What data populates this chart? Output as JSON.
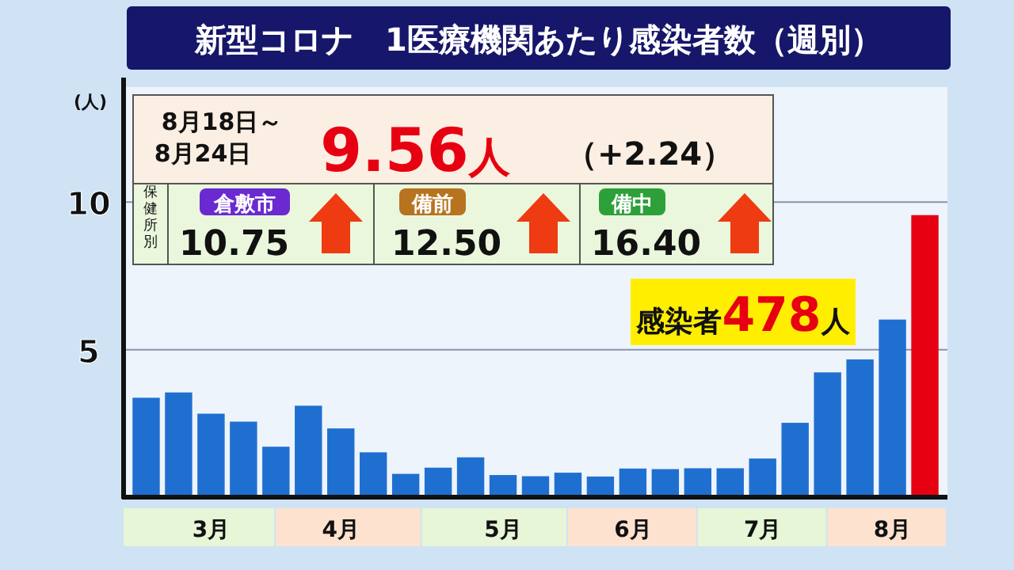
{
  "chart_data": {
    "type": "bar",
    "title": "新型コロナ　1医療機関あたり感染者数（週別）",
    "ylabel": "(人)",
    "categories": [
      null,
      null,
      "3月",
      null,
      null,
      null,
      "4月",
      null,
      null,
      null,
      null,
      "5月",
      null,
      null,
      null,
      "6月",
      null,
      null,
      null,
      "7月",
      null,
      null,
      null,
      "8月",
      null
    ],
    "values": [
      3.37,
      3.55,
      2.83,
      2.56,
      1.71,
      3.1,
      2.33,
      1.52,
      0.79,
      1.0,
      1.35,
      0.75,
      0.71,
      0.83,
      0.7,
      0.97,
      0.95,
      0.98,
      0.98,
      1.31,
      2.52,
      4.23,
      4.67,
      6.02,
      9.56
    ],
    "colors": [
      "#1f6fd0",
      "#1f6fd0",
      "#1f6fd0",
      "#1f6fd0",
      "#1f6fd0",
      "#1f6fd0",
      "#1f6fd0",
      "#1f6fd0",
      "#1f6fd0",
      "#1f6fd0",
      "#1f6fd0",
      "#1f6fd0",
      "#1f6fd0",
      "#1f6fd0",
      "#1f6fd0",
      "#1f6fd0",
      "#1f6fd0",
      "#1f6fd0",
      "#1f6fd0",
      "#1f6fd0",
      "#1f6fd0",
      "#1f6fd0",
      "#1f6fd0",
      "#1f6fd0",
      "#e60012"
    ],
    "ylim": [
      0,
      13.9
    ],
    "yticks": [
      5,
      10
    ],
    "grid": "y",
    "annotations": [
      "8月18日～\n8月24日",
      "9.56人",
      "（+2.24）",
      "保健所別",
      "倉敷市",
      "10.75",
      "備前",
      "12.50",
      "備中",
      "16.40",
      "感染者478人"
    ]
  }
}
